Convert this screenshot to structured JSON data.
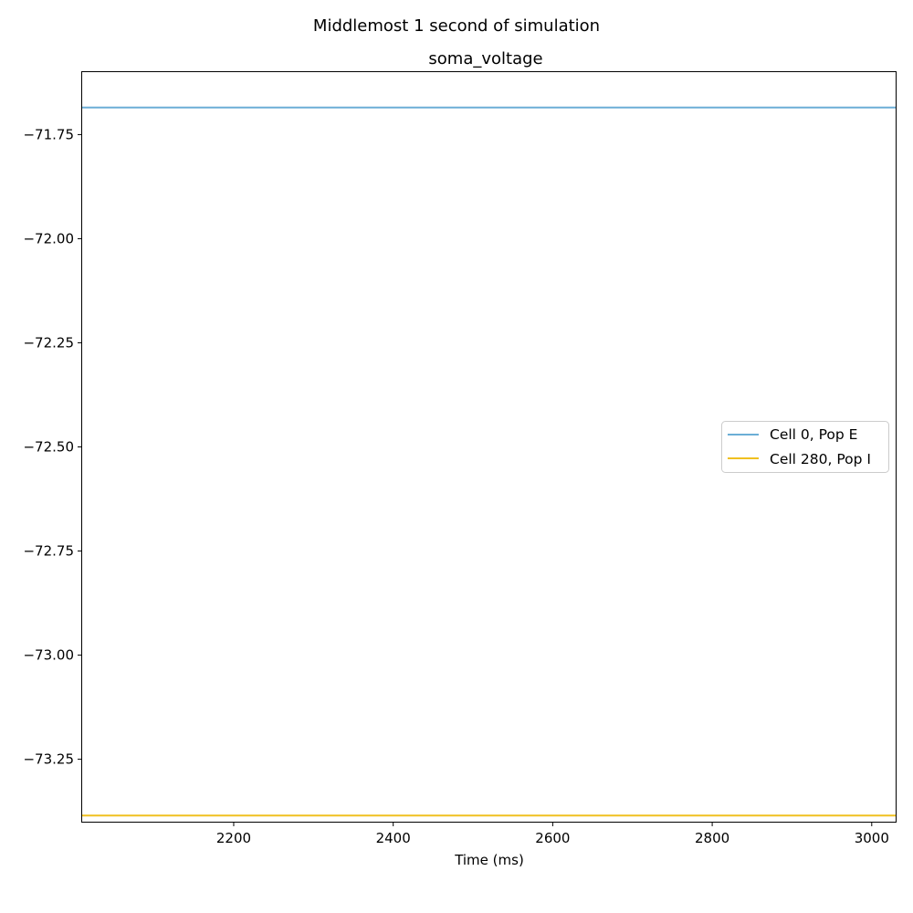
{
  "figure": {
    "suptitle": "Middlemost 1 second of simulation"
  },
  "chart_data": {
    "type": "line",
    "title": "soma_voltage",
    "xlabel": "Time (ms)",
    "ylabel": "",
    "xlim": [
      2010,
      3030
    ],
    "ylim": [
      -73.4,
      -71.6
    ],
    "xticks": [
      2200,
      2400,
      2600,
      2800,
      3000
    ],
    "xtick_labels": [
      "2200",
      "2400",
      "2600",
      "2800",
      "3000"
    ],
    "yticks": [
      -71.75,
      -72.0,
      -72.25,
      -72.5,
      -72.75,
      -73.0,
      -73.25
    ],
    "ytick_labels": [
      "−71.75",
      "−72.00",
      "−72.25",
      "−72.50",
      "−72.75",
      "−73.00",
      "−73.25"
    ],
    "grid": false,
    "legend_position": "center-right",
    "series": [
      {
        "name": "Cell 0, Pop E",
        "color": "#6baed6",
        "x": [
          2010,
          3030
        ],
        "y": [
          -71.685,
          -71.685
        ]
      },
      {
        "name": "Cell 280, Pop I",
        "color": "#f0c020",
        "x": [
          2010,
          3030
        ],
        "y": [
          -73.385,
          -73.385
        ]
      }
    ]
  }
}
